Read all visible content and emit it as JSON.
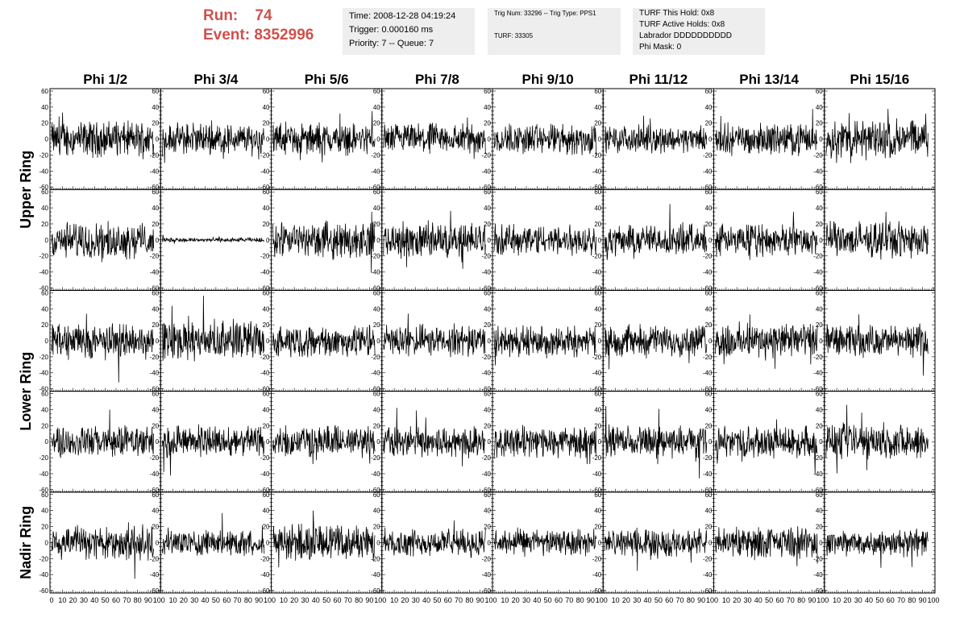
{
  "header": {
    "run_label": "Run:",
    "run_value": "74",
    "event_label": "Event:",
    "event_value": "8352996",
    "info_box_1": {
      "time": "Time: 2008-12-28 04:19:24",
      "trigger": "Trigger: 0.000160 ms",
      "priority": "Priority: 7 -- Queue: 7"
    },
    "info_box_2": {
      "trig": "Trig Num: 33296 -- Trig Type: PPS1",
      "turf": "TURF: 33305"
    },
    "info_box_3": {
      "hold": "TURF This Hold: 0x8",
      "active": "TURF Active Holds: 0x8",
      "labrador": "Labrador DDDDDDDDDD",
      "phimask": "Phi Mask: 0"
    },
    "title_color": "#d0504c"
  },
  "chart_data": {
    "type": "line",
    "columns": [
      "Phi 1/2",
      "Phi 3/4",
      "Phi 5/6",
      "Phi 7/8",
      "Phi 9/10",
      "Phi 11/12",
      "Phi 13/14",
      "Phi 15/16"
    ],
    "ring_labels": [
      {
        "label": "Upper Ring",
        "rows": [
          0,
          1
        ]
      },
      {
        "label": "Lower Ring",
        "rows": [
          2,
          3
        ]
      },
      {
        "label": "Nadir Ring",
        "rows": [
          4
        ]
      }
    ],
    "rows": 5,
    "xlim": [
      0,
      100
    ],
    "ylim": [
      -60,
      60
    ],
    "x_tick_labels": [
      "0",
      "10",
      "20",
      "30",
      "40",
      "50",
      "60",
      "70",
      "80",
      "90",
      "100"
    ],
    "y_tick_labels": [
      "-60",
      "-40",
      "-20",
      "0",
      "20",
      "40",
      "60"
    ],
    "approx_amplitude": [
      [
        16,
        14,
        14,
        14,
        14,
        12,
        14,
        18
      ],
      [
        16,
        2,
        16,
        16,
        14,
        14,
        14,
        16
      ],
      [
        16,
        18,
        14,
        14,
        14,
        14,
        16,
        14
      ],
      [
        14,
        14,
        14,
        14,
        14,
        14,
        14,
        16
      ],
      [
        16,
        12,
        16,
        12,
        12,
        12,
        14,
        12
      ]
    ]
  }
}
